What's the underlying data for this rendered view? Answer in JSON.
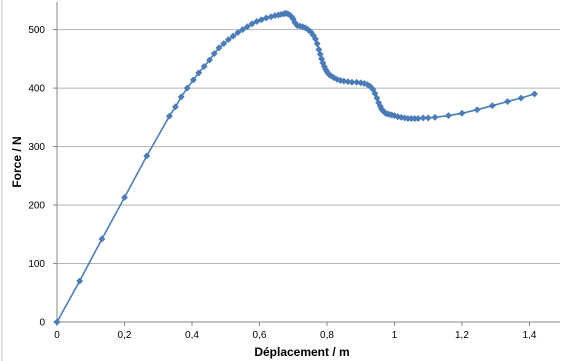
{
  "chart_data": {
    "type": "line",
    "title": "",
    "xlabel": "Déplacement / m",
    "ylabel": "Force / N",
    "xlim": [
      0,
      1.5
    ],
    "ylim": [
      0,
      550
    ],
    "x_ticks": [
      0,
      0.2,
      0.4,
      0.6,
      0.8,
      1.0,
      1.2,
      1.4
    ],
    "x_tick_labels": [
      "0",
      "0,2",
      "0,4",
      "0,6",
      "0,8",
      "1",
      "1,2",
      "1,4"
    ],
    "y_ticks": [
      0,
      100,
      200,
      300,
      400,
      500
    ],
    "y_tick_labels": [
      "0",
      "100",
      "200",
      "300",
      "400",
      "500"
    ],
    "grid": "horizontal",
    "legend": "none",
    "series_color": "#4a7ebb",
    "marker": "diamond",
    "series": [
      {
        "x": [
          0,
          0.067,
          0.133,
          0.2,
          0.266,
          0.333,
          0.351,
          0.368,
          0.386,
          0.404,
          0.42,
          0.436,
          0.452,
          0.466,
          0.48,
          0.494,
          0.508,
          0.522,
          0.536,
          0.55,
          0.564,
          0.578,
          0.592,
          0.606,
          0.62,
          0.634,
          0.646,
          0.656,
          0.664,
          0.672,
          0.678,
          0.684,
          0.69,
          0.695,
          0.7,
          0.705,
          0.712,
          0.72,
          0.728,
          0.736,
          0.744,
          0.752,
          0.76,
          0.766,
          0.771,
          0.776,
          0.78,
          0.784,
          0.788,
          0.792,
          0.796,
          0.8,
          0.805,
          0.812,
          0.82,
          0.83,
          0.84,
          0.85,
          0.862,
          0.874,
          0.888,
          0.9,
          0.91,
          0.92,
          0.928,
          0.936,
          0.942,
          0.948,
          0.953,
          0.958,
          0.962,
          0.966,
          0.97,
          0.974,
          0.979,
          0.985,
          0.992,
          1.0,
          1.01,
          1.02,
          1.03,
          1.04,
          1.05,
          1.06,
          1.07,
          1.085,
          1.1,
          1.12,
          1.16,
          1.2,
          1.245,
          1.29,
          1.335,
          1.375,
          1.415
        ],
        "y": [
          0,
          70,
          142,
          213,
          284,
          352,
          368,
          385,
          400,
          414,
          426,
          437,
          448,
          459,
          469,
          476,
          483,
          489,
          495,
          500,
          505,
          510,
          514,
          517,
          520,
          522,
          524,
          525,
          526,
          527,
          528,
          527,
          525,
          522,
          518,
          512,
          507,
          506,
          505,
          503,
          500,
          496,
          490,
          484,
          476,
          466,
          458,
          450,
          443,
          437,
          432,
          428,
          424,
          421,
          418,
          415,
          413,
          412,
          411,
          410,
          410,
          409,
          408,
          406,
          403,
          398,
          391,
          383,
          375,
          369,
          364,
          361,
          359,
          357,
          356,
          355,
          354,
          353,
          351,
          350,
          349,
          348,
          348,
          348,
          348,
          349,
          349,
          350,
          353,
          357,
          363,
          370,
          377,
          383,
          390
        ]
      }
    ]
  }
}
